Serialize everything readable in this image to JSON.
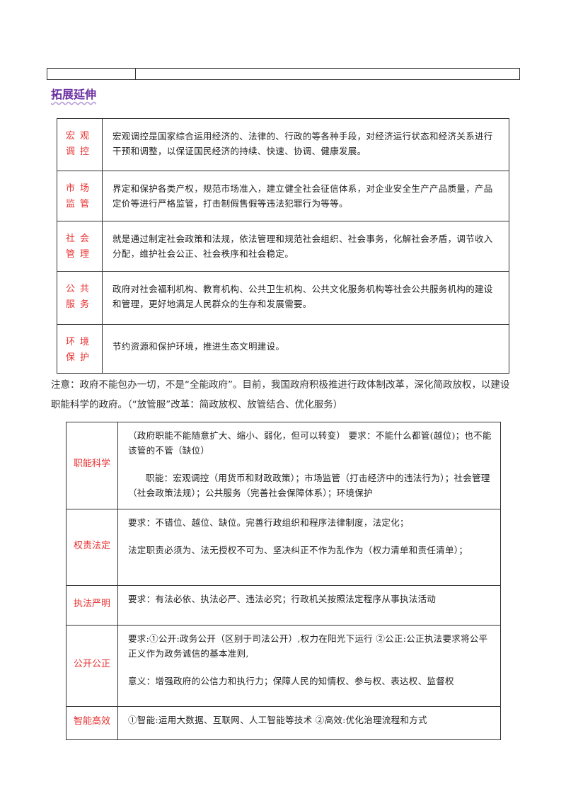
{
  "heading": "拓展延伸",
  "table1": [
    {
      "label": "宏观调控",
      "text": "宏观调控是国家综合运用经济的、法律的、行政的等各种手段，对经济运行状态和经济关系进行干预和调整，以保证国民经济的持续、快速、协调、健康发展。"
    },
    {
      "label": "市场监管",
      "text": "界定和保护各类产权，规范市场准入，建立健全社会征信体系，对企业安全生产产品质量，产品定价等进行严格监管，打击制假售假等违法犯罪行为等等。"
    },
    {
      "label": "社会管理",
      "text": "就是通过制定社会政策和法规，依法管理和规范社会组织、社会事务，化解社会矛盾，调节收入分配，维护社会公正、社会秩序和社会稳定。"
    },
    {
      "label": "公共服务",
      "text": "政府对社会福利机构、教育机构、公共卫生机构、公共文化服务机构等社会公共服务机构的建设和管理，更好地满足人民群众的生存和发展需要。"
    },
    {
      "label": "环境保护",
      "text": "节约资源和保护环境，推进生态文明建设。"
    }
  ],
  "note": "注意：政府不能包办一切，不是“全能政府”。目前，我国政府积极推进行政体制改革，深化简政放权，以建设职能科学的政府。（“放管服”改革：简政放权、放管结合、优化服务）",
  "table2": [
    {
      "label": "职能科学",
      "p1": "（政府职能不能随意扩大、缩小、弱化，但可以转变） 要求：不能什么都管(越位)；也不能该管的不管（缺位）",
      "p2": "职能：宏观调控（用货币和财政政策）；市场监管（打击经济中的违法行为）；社会管理（社会政策法规）；公共服务（完善社会保障体系）；环境保护"
    },
    {
      "label": "权责法定",
      "p1": "要求：不错位、越位、缺位。完善行政组织和程序法律制度，法定化；",
      "p2": "法定职责必须为、法无授权不可为、坚决纠正不作为乱作为（权力清单和责任清单）；"
    },
    {
      "label": "执法严明",
      "p1": "要求：有法必依、执法必严、违法必究；行政机关按照法定程序从事执法活动"
    },
    {
      "label": "公开公正",
      "p1": "要求:①公开:政务公开（区别于司法公开）,权力在阳光下运行 ②公正:公正执法要求将公平正义作为政务诚信的基本准则,",
      "p2": "意义：增强政府的公信力和执行力；保障人民的知情权、参与权、表达权、监督权"
    },
    {
      "label": "智能高效",
      "p1": "①智能:运用大数据、互联网、人工智能等技术 ②高效:优化治理流程和方式"
    }
  ],
  "colors": {
    "label": "#e8302f",
    "heading": "#6a2fa0"
  }
}
